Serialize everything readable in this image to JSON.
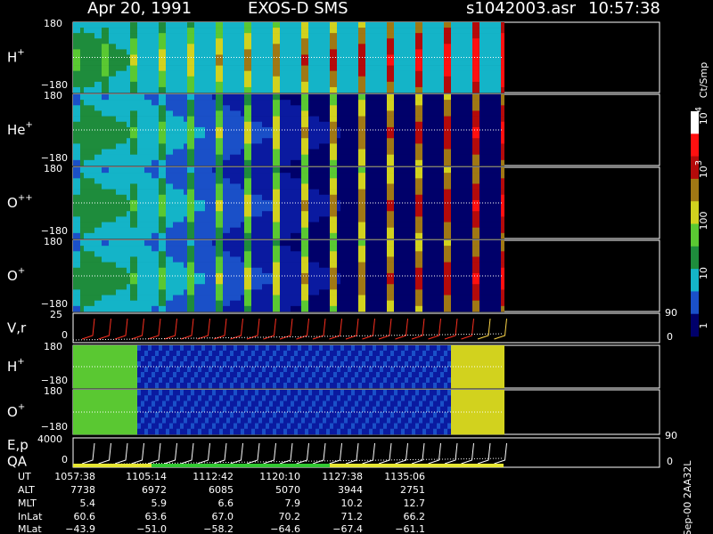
{
  "header": {
    "date": "Apr 20, 1991",
    "instrument": "EXOS-D SMS",
    "file": "s1042003.asr",
    "time": "10:57:38"
  },
  "panels": [
    {
      "label": {
        "base": "H",
        "sup": "+"
      },
      "top": "180",
      "bottom": "−180"
    },
    {
      "label": {
        "base": "He",
        "sup": "+"
      },
      "top": "180",
      "bottom": "−180"
    },
    {
      "label": {
        "base": "O",
        "sup": "++"
      },
      "top": "180",
      "bottom": "−180"
    },
    {
      "label": {
        "base": "O",
        "sup": "+"
      },
      "top": "180",
      "bottom": "−180"
    },
    {
      "label": {
        "base": "V,r"
      },
      "top": "25",
      "bottom": "0",
      "right_top": "90",
      "right_bottom": "0"
    },
    {
      "label": {
        "base": "H",
        "sup": "+"
      },
      "top": "180",
      "bottom": "−180"
    },
    {
      "label": {
        "base": "O",
        "sup": "+"
      },
      "top": "180",
      "bottom": "−180"
    },
    {
      "label": {
        "base": "E,p",
        "second": "QA"
      },
      "top": "4000",
      "bottom": "0",
      "right_top": "90",
      "right_bottom": "0"
    }
  ],
  "colorbar": {
    "label": "Ct/Smp",
    "ticks": [
      {
        "base": "10",
        "sup": "4"
      },
      {
        "base": "10",
        "sup": "3"
      },
      {
        "base": "100"
      },
      {
        "base": "10"
      },
      {
        "base": "1"
      }
    ]
  },
  "table": {
    "rows": [
      [
        "UT",
        "1057:38",
        "1105:14",
        "1112:42",
        "1120:10",
        "1127:38",
        "1135:06"
      ],
      [
        "ALT",
        "7738",
        "6972",
        "6085",
        "5070",
        "3944",
        "2751"
      ],
      [
        "MLT",
        "5.4",
        "5.9",
        "6.6",
        "7.9",
        "10.2",
        "12.7"
      ],
      [
        "InLat",
        "60.6",
        "63.6",
        "67.0",
        "70.2",
        "71.2",
        "66.2"
      ],
      [
        "MLat",
        "−43.9",
        "−51.0",
        "−58.2",
        "−64.6",
        "−67.4",
        "−61.1"
      ]
    ]
  },
  "footer": "Sep-00 2AA32L"
}
